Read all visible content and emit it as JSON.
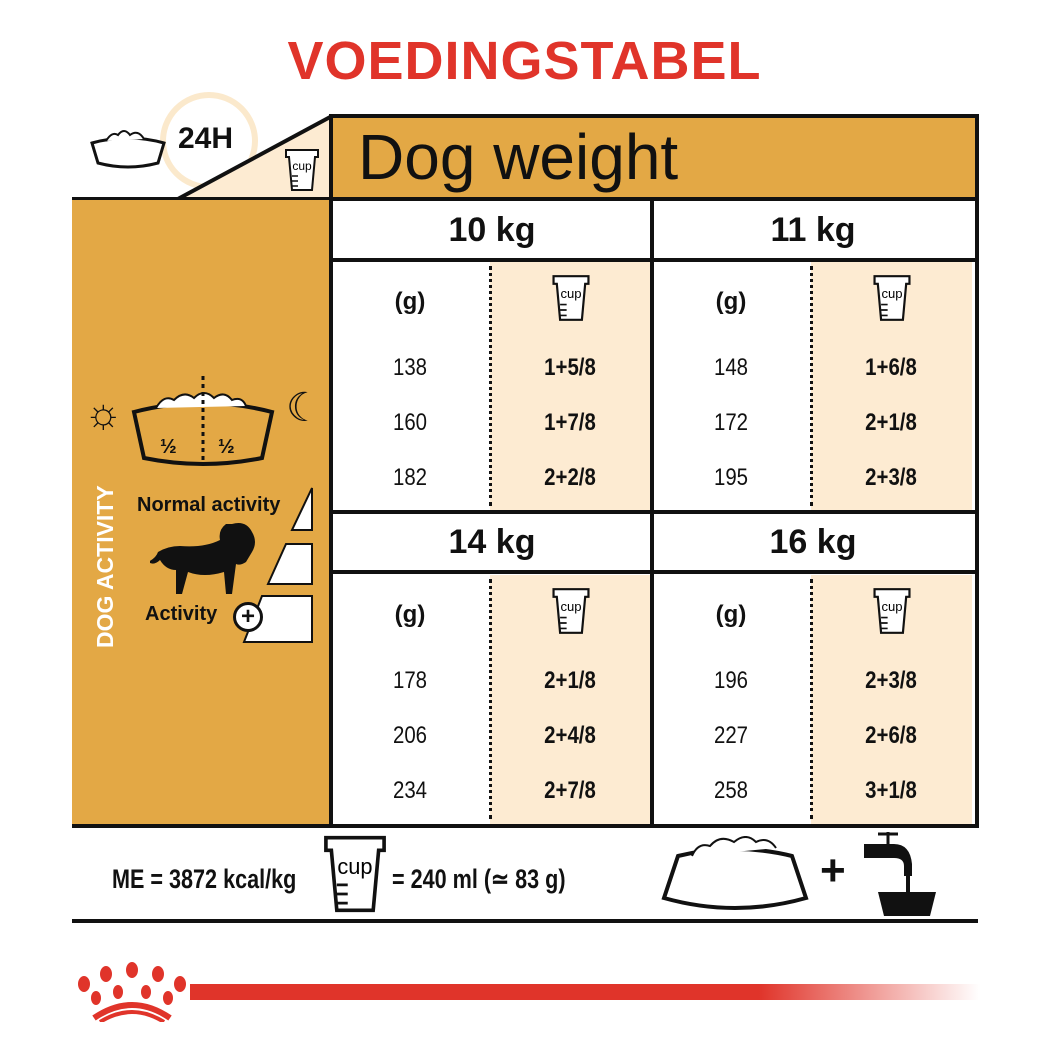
{
  "title": "VOEDINGSTABEL",
  "header": {
    "period": "24H",
    "cup_label": "cup",
    "dog_weight": "Dog weight"
  },
  "side": {
    "half_left": "½",
    "half_right": "½",
    "vertical_label": "DOG ACTIVITY",
    "normal_activity": "Normal activity",
    "activity": "Activity"
  },
  "table": {
    "gram_label": "(g)",
    "cup_label": "cup",
    "blocks": [
      {
        "weight": "10 kg",
        "rows": [
          [
            "138",
            "1+5/8"
          ],
          [
            "160",
            "1+7/8"
          ],
          [
            "182",
            "2+2/8"
          ]
        ]
      },
      {
        "weight": "11 kg",
        "rows": [
          [
            "148",
            "1+6/8"
          ],
          [
            "172",
            "2+1/8"
          ],
          [
            "195",
            "2+3/8"
          ]
        ]
      },
      {
        "weight": "14 kg",
        "rows": [
          [
            "178",
            "2+1/8"
          ],
          [
            "206",
            "2+4/8"
          ],
          [
            "234",
            "2+7/8"
          ]
        ]
      },
      {
        "weight": "16 kg",
        "rows": [
          [
            "196",
            "2+3/8"
          ],
          [
            "227",
            "2+6/8"
          ],
          [
            "258",
            "3+1/8"
          ]
        ]
      }
    ]
  },
  "footer": {
    "energy": "ME = 3872 kcal/kg",
    "cup_label": "cup",
    "cup_equiv": "= 240 ml (≃ 83 g)",
    "plus": "+"
  },
  "colors": {
    "title": "#e0342a",
    "gold": "#e3a845",
    "cream": "#fdebd2",
    "brand_red": "#e0342a"
  }
}
